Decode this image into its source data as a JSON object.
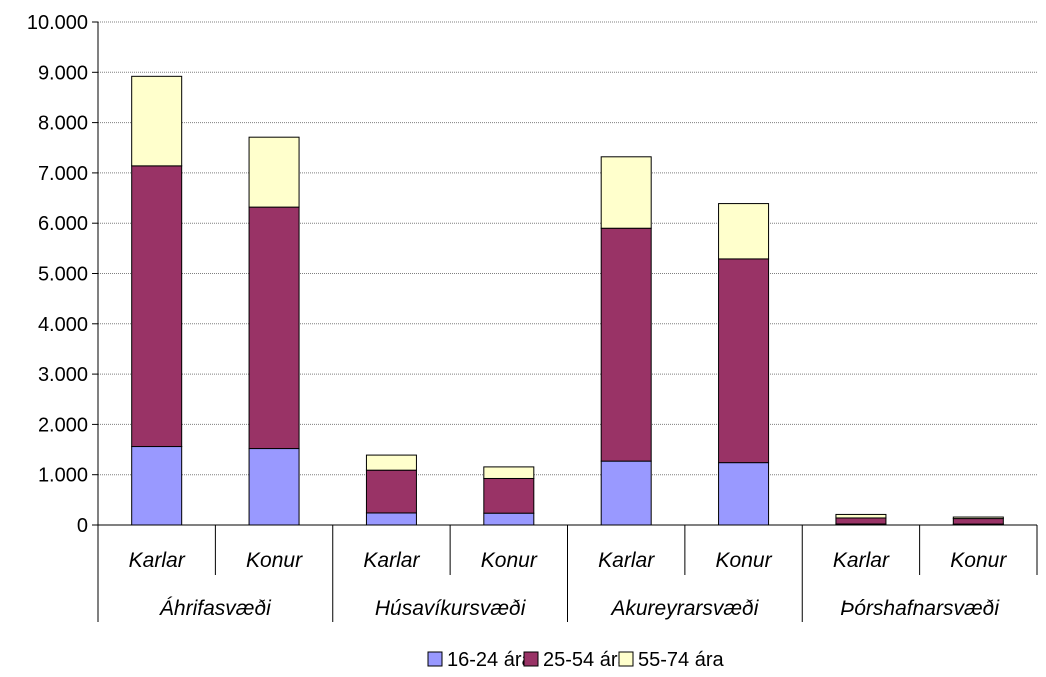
{
  "chart_data": {
    "type": "bar",
    "stacked": true,
    "groups": [
      "Áhrifasvæði",
      "Húsavíkursvæði",
      "Akureyrarsvæði",
      "Þórshafnarsvæði"
    ],
    "categories": [
      "Karlar",
      "Konur",
      "Karlar",
      "Konur",
      "Karlar",
      "Konur",
      "Karlar",
      "Konur"
    ],
    "series": [
      {
        "name": "16-24 ára",
        "color": "#9999ff",
        "values": [
          1560,
          1520,
          240,
          235,
          1270,
          1240,
          20,
          18
        ]
      },
      {
        "name": "25-54 ára",
        "color": "#993366",
        "values": [
          5580,
          4800,
          850,
          690,
          4630,
          4050,
          120,
          110
        ]
      },
      {
        "name": "55-74 ára",
        "color": "#ffffcc",
        "values": [
          1780,
          1390,
          300,
          230,
          1420,
          1100,
          70,
          30
        ]
      }
    ],
    "yticks": [
      "0",
      "1.000",
      "2.000",
      "3.000",
      "4.000",
      "5.000",
      "6.000",
      "7.000",
      "8.000",
      "9.000",
      "10.000"
    ],
    "ylim": [
      0,
      10000
    ],
    "grid": true,
    "legend_position": "bottom",
    "title": "",
    "xlabel": "",
    "ylabel": ""
  }
}
